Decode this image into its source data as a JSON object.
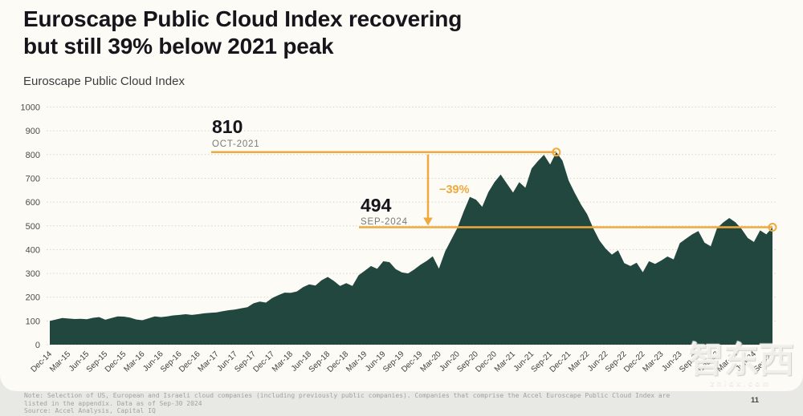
{
  "page": {
    "title_line1": "Euroscape Public Cloud Index recovering",
    "title_line2": "but still 39% below 2021 peak",
    "subtitle": "Euroscape Public Cloud Index",
    "footnote_line1": "Note: Selection of US, European and Israeli cloud companies (including previously public companies). Companies that comprise the Accel Euroscape Public Cloud Index are",
    "footnote_line2": "listed in the appendix. Data as of Sep-30 2024",
    "source_line": "Source: Accel Analysis, Capital IQ",
    "page_number": "11",
    "watermark_text": "智东西",
    "watermark_sub": "zhidx.com"
  },
  "colors": {
    "background": "#fcfbf6",
    "footer_band": "#e8e8e5",
    "area_fill": "#22473F",
    "accent_orange": "#EFA93D",
    "title_text": "#15151b",
    "gridline": "#d6d4cc"
  },
  "chart_data": {
    "type": "area",
    "title": "Euroscape Public Cloud Index",
    "xlabel": "",
    "ylabel": "",
    "ylim": [
      0,
      1000
    ],
    "y_ticks": [
      0,
      100,
      200,
      300,
      400,
      500,
      600,
      700,
      800,
      900,
      1000
    ],
    "grid": "horizontal-dotted",
    "x_frequency": "monthly",
    "x_range": [
      "Dec-2014",
      "Sep-2024"
    ],
    "x_tick_labels": [
      "Dec-14",
      "Mar-15",
      "Jun-15",
      "Sep-15",
      "Dec-15",
      "Mar-16",
      "Jun-16",
      "Sep-16",
      "Dec-16",
      "Mar-17",
      "Jun-17",
      "Sep-17",
      "Dec-17",
      "Mar-18",
      "Jun-18",
      "Sep-18",
      "Dec-18",
      "Mar-19",
      "Jun-19",
      "Sep-19",
      "Dec-19",
      "Mar-20",
      "Jun-20",
      "Sep-20",
      "Dec-20",
      "Mar-21",
      "Jun-21",
      "Sep-21",
      "Dec-21",
      "Mar-22",
      "Jun-22",
      "Sep-22",
      "Dec-22",
      "Mar-23",
      "Jun-23",
      "Sep-23",
      "Dec-23",
      "Mar-24",
      "Jun-24",
      "Sep-24"
    ],
    "series": [
      {
        "name": "Euroscape Public Cloud Index",
        "start_month": "Dec-2014",
        "values": [
          100,
          106,
          112,
          110,
          108,
          109,
          107,
          113,
          116,
          105,
          112,
          119,
          118,
          114,
          106,
          103,
          111,
          119,
          116,
          119,
          123,
          125,
          128,
          125,
          128,
          132,
          134,
          136,
          141,
          145,
          148,
          153,
          158,
          174,
          181,
          177,
          196,
          208,
          219,
          218,
          224,
          242,
          254,
          249,
          271,
          285,
          268,
          247,
          259,
          247,
          292,
          311,
          331,
          319,
          351,
          347,
          318,
          304,
          300,
          316,
          336,
          352,
          372,
          320,
          392,
          442,
          492,
          560,
          622,
          610,
          580,
          642,
          684,
          716,
          678,
          640,
          684,
          660,
          741,
          772,
          799,
          758,
          810,
          774,
          690,
          638,
          590,
          549,
          489,
          438,
          404,
          379,
          397,
          343,
          331,
          345,
          305,
          351,
          340,
          354,
          371,
          359,
          427,
          446,
          464,
          478,
          429,
          414,
          489,
          514,
          533,
          515,
          487,
          449,
          432,
          481,
          464,
          494
        ]
      }
    ],
    "annotations": {
      "peak": {
        "value_label": "810",
        "date_label": "OCT-2021",
        "value": 810,
        "month": "Oct-2021",
        "month_index": 82
      },
      "current": {
        "value_label": "494",
        "date_label": "SEP-2024",
        "value": 494,
        "month": "Sep-2024",
        "month_index": 117
      },
      "change_label": "−39%"
    }
  }
}
